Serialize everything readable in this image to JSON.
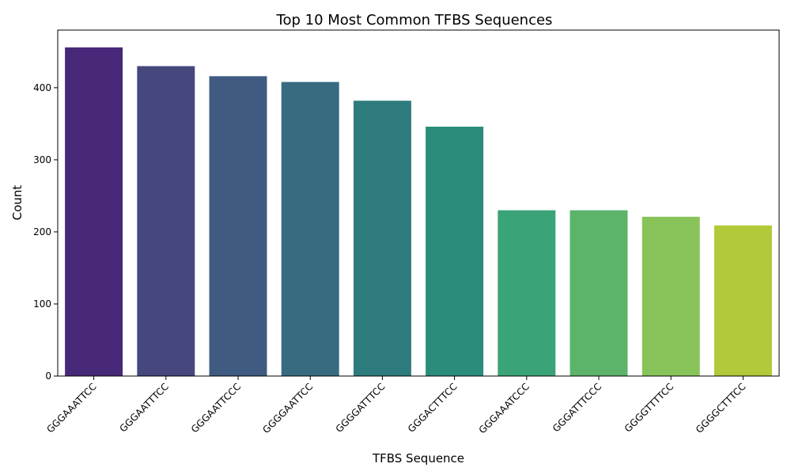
{
  "chart_data": {
    "type": "bar",
    "title": "Top 10 Most Common TFBS Sequences",
    "xlabel": "TFBS Sequence",
    "ylabel": "Count",
    "categories": [
      "GGGAAATTCC",
      "GGGAATTTCC",
      "GGGAATTCCC",
      "GGGGAATTCC",
      "GGGGATTTCC",
      "GGGACTTTCC",
      "GGGAAATCCC",
      "GGGATTTCCC",
      "GGGGTTTTCC",
      "GGGGCTTTCC"
    ],
    "values": [
      456,
      430,
      416,
      408,
      382,
      346,
      230,
      230,
      221,
      209
    ],
    "colors": [
      "#482878",
      "#46477d",
      "#3f5b82",
      "#366b80",
      "#2e7b7d",
      "#2b8c7b",
      "#3ba378",
      "#5bb46a",
      "#88c35a",
      "#b2c93a"
    ],
    "ylim": [
      0,
      480
    ],
    "yticks": [
      0,
      100,
      200,
      300,
      400
    ],
    "grid": false,
    "legend": "none"
  }
}
